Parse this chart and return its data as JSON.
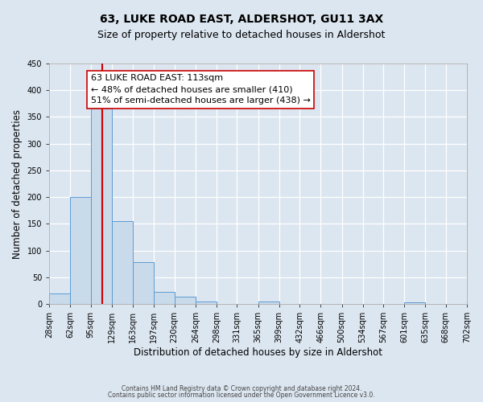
{
  "title": "63, LUKE ROAD EAST, ALDERSHOT, GU11 3AX",
  "subtitle": "Size of property relative to detached houses in Aldershot",
  "xlabel": "Distribution of detached houses by size in Aldershot",
  "ylabel": "Number of detached properties",
  "bar_edges": [
    28,
    62,
    95,
    129,
    163,
    197,
    230,
    264,
    298,
    331,
    365,
    399,
    432,
    466,
    500,
    534,
    567,
    601,
    635,
    668,
    702
  ],
  "bar_heights": [
    20,
    200,
    365,
    155,
    78,
    22,
    14,
    5,
    0,
    0,
    4,
    0,
    0,
    0,
    0,
    0,
    0,
    3,
    0,
    0
  ],
  "bar_color": "#c9daea",
  "bar_edge_color": "#5b9bd5",
  "vline_x": 113,
  "vline_color": "#cc0000",
  "ylim": [
    0,
    450
  ],
  "xlim": [
    28,
    702
  ],
  "annotation_title": "63 LUKE ROAD EAST: 113sqm",
  "annotation_line1": "← 48% of detached houses are smaller (410)",
  "annotation_line2": "51% of semi-detached houses are larger (438) →",
  "background_color": "#dce6f0",
  "plot_bg_color": "#dce6f0",
  "grid_color": "#ffffff",
  "footer_line1": "Contains HM Land Registry data © Crown copyright and database right 2024.",
  "footer_line2": "Contains public sector information licensed under the Open Government Licence v3.0.",
  "title_fontsize": 10,
  "subtitle_fontsize": 9,
  "tick_label_fontsize": 7,
  "axis_label_fontsize": 8.5,
  "annotation_fontsize": 8
}
